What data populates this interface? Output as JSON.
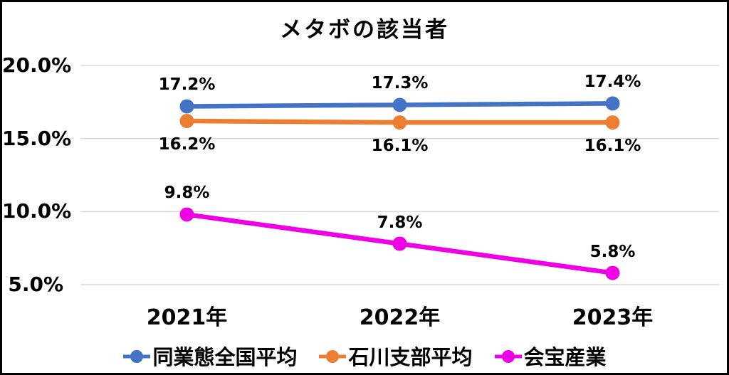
{
  "chart_data": {
    "type": "line",
    "title": "メタボの該当者",
    "categories": [
      "2021年",
      "2022年",
      "2023年"
    ],
    "series": [
      {
        "name": "同業態全国平均",
        "values": [
          17.2,
          17.3,
          17.4
        ],
        "labels": [
          "17.2%",
          "17.3%",
          "17.4%"
        ],
        "color": "#4472C4",
        "label_position": "above"
      },
      {
        "name": "石川支部平均",
        "values": [
          16.2,
          16.1,
          16.1
        ],
        "labels": [
          "16.2%",
          "16.1%",
          "16.1%"
        ],
        "color": "#ED7D31",
        "label_position": "below"
      },
      {
        "name": "会宝産業",
        "values": [
          9.8,
          7.8,
          5.8
        ],
        "labels": [
          "9.8%",
          "7.8%",
          "5.8%"
        ],
        "color": "#EE00E6",
        "label_position": "above"
      }
    ],
    "yticks": {
      "values": [
        20,
        15,
        10,
        5
      ],
      "labels": [
        "20.0%",
        "15.0%",
        "10.0%",
        "5.0%"
      ]
    },
    "ylim": [
      5,
      20
    ],
    "xlabel": "",
    "ylabel": "",
    "grid": true,
    "grid_color": "#D9D9D9",
    "text_color": "#000000",
    "background_color": "#FFFFFF",
    "border_color": "#000000",
    "legend_position": "bottom"
  }
}
